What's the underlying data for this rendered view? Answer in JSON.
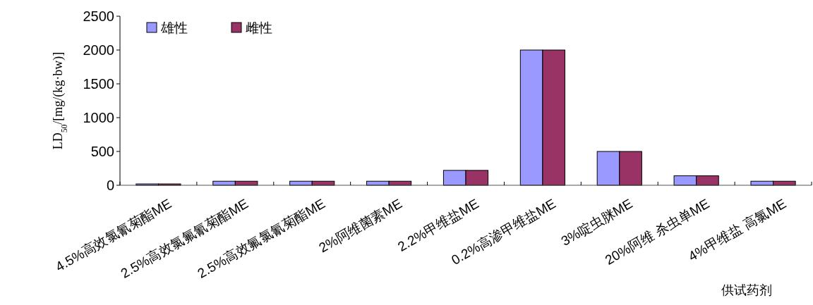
{
  "chart_data": {
    "type": "bar",
    "ylabel": "LD$_{50}$/[mg/(kg·bw)]",
    "xlabel": "供试药剂",
    "categories": [
      "4.5%高效氯氰菊酯ME",
      "2.5%高效氯氟氰菊酯ME",
      "2.5%高效氟氯氰菊酯ME",
      "2%阿维菌素ME",
      "2.2%甲维盐ME",
      "0.2%高渗甲维盐ME",
      "3%啶虫脒ME",
      "20%阿维 杀虫单ME",
      "4%甲维盐 高氯ME"
    ],
    "series": [
      {
        "name": "雄性",
        "color": "#9999ff",
        "values": [
          20,
          60,
          60,
          60,
          220,
          2000,
          500,
          140,
          60
        ]
      },
      {
        "name": "雌性",
        "color": "#993366",
        "values": [
          20,
          60,
          60,
          60,
          220,
          2000,
          500,
          140,
          60
        ]
      }
    ],
    "ylim": [
      0,
      2500
    ],
    "yticks": [
      0,
      500,
      1000,
      1500,
      2000,
      2500
    ],
    "legend": "top left"
  }
}
